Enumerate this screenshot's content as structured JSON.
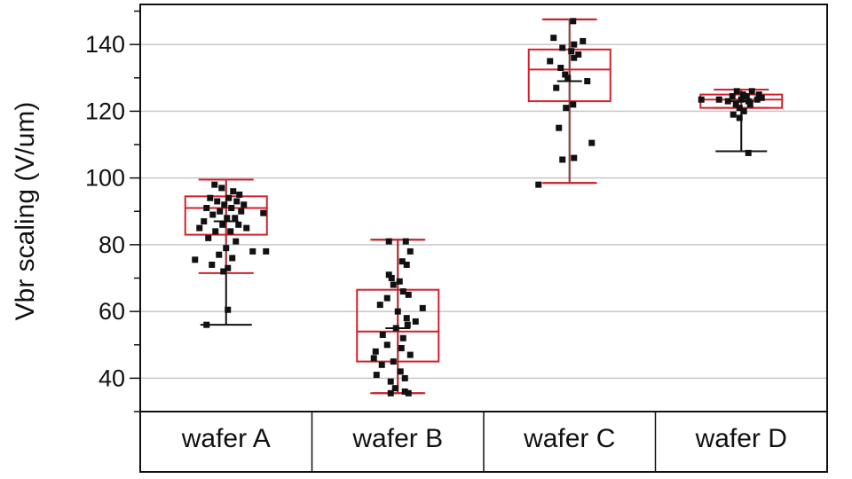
{
  "chart_data": {
    "type": "box",
    "ylabel": "Vbr scaling (V/um)",
    "ylim": [
      30,
      152
    ],
    "yticks": [
      40,
      60,
      80,
      100,
      120,
      140
    ],
    "grid": true,
    "categories": [
      "wafer A",
      "wafer B",
      "wafer C",
      "wafer D"
    ],
    "colors": {
      "box": "#d2202c",
      "points": "#111111",
      "whisker": "#111111",
      "grid": "#c8c8c8"
    },
    "boxes": [
      {
        "category": "wafer A",
        "min": 56,
        "q1": 83,
        "median": 91,
        "q3": 94.5,
        "max": 99.5,
        "mean": 87,
        "ci_low": 71.5,
        "ci_high": 99.5
      },
      {
        "category": "wafer B",
        "min": 35.5,
        "q1": 45,
        "median": 54,
        "q3": 66.5,
        "max": 81.5,
        "mean": 55,
        "ci_low": 35.5,
        "ci_high": 81.5
      },
      {
        "category": "wafer C",
        "min": 98.5,
        "q1": 123,
        "median": 132.5,
        "q3": 138.5,
        "max": 147.5,
        "mean": 129,
        "ci_low": 98.5,
        "ci_high": 147.5
      },
      {
        "category": "wafer D",
        "min": 108,
        "q1": 121,
        "median": 123.5,
        "q3": 125,
        "max": 126.5,
        "mean": 123,
        "ci_low": 121,
        "ci_high": 126.5
      }
    ],
    "points": [
      {
        "category": "wafer A",
        "values": [
          {
            "x": -0.13,
            "y": 98
          },
          {
            "x": -0.05,
            "y": 97
          },
          {
            "x": 0.08,
            "y": 96
          },
          {
            "x": 0.15,
            "y": 95
          },
          {
            "x": -0.18,
            "y": 94
          },
          {
            "x": 0.03,
            "y": 94
          },
          {
            "x": -0.1,
            "y": 93
          },
          {
            "x": 0.12,
            "y": 93
          },
          {
            "x": -0.02,
            "y": 92
          },
          {
            "x": 0.2,
            "y": 92
          },
          {
            "x": -0.22,
            "y": 91
          },
          {
            "x": 0.06,
            "y": 91
          },
          {
            "x": -0.07,
            "y": 90
          },
          {
            "x": 0.17,
            "y": 90
          },
          {
            "x": 0.42,
            "y": 89.5
          },
          {
            "x": -0.15,
            "y": 89
          },
          {
            "x": 0.01,
            "y": 88
          },
          {
            "x": 0.1,
            "y": 88
          },
          {
            "x": -0.25,
            "y": 87
          },
          {
            "x": -0.04,
            "y": 86
          },
          {
            "x": 0.14,
            "y": 86
          },
          {
            "x": 0.23,
            "y": 85
          },
          {
            "x": -0.3,
            "y": 85
          },
          {
            "x": -0.12,
            "y": 84
          },
          {
            "x": 0.05,
            "y": 84
          },
          {
            "x": -0.2,
            "y": 82
          },
          {
            "x": 0.11,
            "y": 81
          },
          {
            "x": 0.0,
            "y": 79
          },
          {
            "x": 0.3,
            "y": 78
          },
          {
            "x": 0.45,
            "y": 78
          },
          {
            "x": -0.08,
            "y": 77
          },
          {
            "x": 0.07,
            "y": 76
          },
          {
            "x": -0.35,
            "y": 75.5
          },
          {
            "x": -0.16,
            "y": 74
          },
          {
            "x": 0.02,
            "y": 73
          },
          {
            "x": -0.03,
            "y": 72
          },
          {
            "x": 0.02,
            "y": 60.5
          },
          {
            "x": -0.22,
            "y": 56
          }
        ]
      },
      {
        "category": "wafer B",
        "values": [
          {
            "x": -0.1,
            "y": 81
          },
          {
            "x": 0.09,
            "y": 81
          },
          {
            "x": 0.14,
            "y": 78
          },
          {
            "x": 0.05,
            "y": 75
          },
          {
            "x": 0.1,
            "y": 74
          },
          {
            "x": -0.1,
            "y": 71
          },
          {
            "x": -0.07,
            "y": 70
          },
          {
            "x": 0.02,
            "y": 69
          },
          {
            "x": -0.05,
            "y": 68
          },
          {
            "x": 0.06,
            "y": 66
          },
          {
            "x": 0.12,
            "y": 65
          },
          {
            "x": -0.12,
            "y": 64
          },
          {
            "x": -0.2,
            "y": 62
          },
          {
            "x": 0.28,
            "y": 61
          },
          {
            "x": 0.0,
            "y": 60
          },
          {
            "x": 0.1,
            "y": 58
          },
          {
            "x": 0.2,
            "y": 57
          },
          {
            "x": 0.11,
            "y": 56
          },
          {
            "x": -0.02,
            "y": 55
          },
          {
            "x": -0.17,
            "y": 53
          },
          {
            "x": 0.06,
            "y": 52
          },
          {
            "x": -0.12,
            "y": 50
          },
          {
            "x": 0.04,
            "y": 49
          },
          {
            "x": -0.25,
            "y": 48
          },
          {
            "x": 0.14,
            "y": 47
          },
          {
            "x": -0.27,
            "y": 46
          },
          {
            "x": -0.05,
            "y": 45
          },
          {
            "x": -0.18,
            "y": 44
          },
          {
            "x": 0.03,
            "y": 42
          },
          {
            "x": -0.24,
            "y": 41
          },
          {
            "x": 0.08,
            "y": 40
          },
          {
            "x": -0.08,
            "y": 39
          },
          {
            "x": -0.03,
            "y": 37
          },
          {
            "x": 0.08,
            "y": 36
          },
          {
            "x": -0.08,
            "y": 35.5
          },
          {
            "x": 0.12,
            "y": 35.5
          }
        ]
      },
      {
        "category": "wafer C",
        "values": [
          {
            "x": 0.04,
            "y": 147
          },
          {
            "x": -0.18,
            "y": 142
          },
          {
            "x": 0.15,
            "y": 141
          },
          {
            "x": 0.05,
            "y": 140
          },
          {
            "x": -0.08,
            "y": 139
          },
          {
            "x": 0.02,
            "y": 138
          },
          {
            "x": 0.1,
            "y": 137
          },
          {
            "x": 0.05,
            "y": 136
          },
          {
            "x": -0.22,
            "y": 135
          },
          {
            "x": -0.1,
            "y": 133
          },
          {
            "x": -0.05,
            "y": 131
          },
          {
            "x": -0.02,
            "y": 130
          },
          {
            "x": 0.2,
            "y": 129
          },
          {
            "x": -0.15,
            "y": 127
          },
          {
            "x": 0.04,
            "y": 122
          },
          {
            "x": -0.04,
            "y": 121
          },
          {
            "x": -0.12,
            "y": 115
          },
          {
            "x": 0.25,
            "y": 110.5
          },
          {
            "x": 0.05,
            "y": 106
          },
          {
            "x": -0.08,
            "y": 105.5
          },
          {
            "x": -0.35,
            "y": 98
          }
        ]
      },
      {
        "category": "wafer D",
        "values": [
          {
            "x": -0.05,
            "y": 126
          },
          {
            "x": 0.12,
            "y": 126
          },
          {
            "x": 0.02,
            "y": 125
          },
          {
            "x": 0.2,
            "y": 125
          },
          {
            "x": -0.1,
            "y": 124.5
          },
          {
            "x": 0.06,
            "y": 124.5
          },
          {
            "x": -0.45,
            "y": 123.5
          },
          {
            "x": -0.25,
            "y": 123.5
          },
          {
            "x": 0.0,
            "y": 123.5
          },
          {
            "x": 0.18,
            "y": 123.5
          },
          {
            "x": 0.23,
            "y": 124
          },
          {
            "x": -0.15,
            "y": 123
          },
          {
            "x": 0.08,
            "y": 123
          },
          {
            "x": -0.06,
            "y": 122
          },
          {
            "x": 0.1,
            "y": 122
          },
          {
            "x": -0.02,
            "y": 121
          },
          {
            "x": 0.03,
            "y": 120
          },
          {
            "x": -0.09,
            "y": 119
          },
          {
            "x": -0.02,
            "y": 118
          },
          {
            "x": 0.08,
            "y": 107.5
          }
        ]
      }
    ]
  }
}
